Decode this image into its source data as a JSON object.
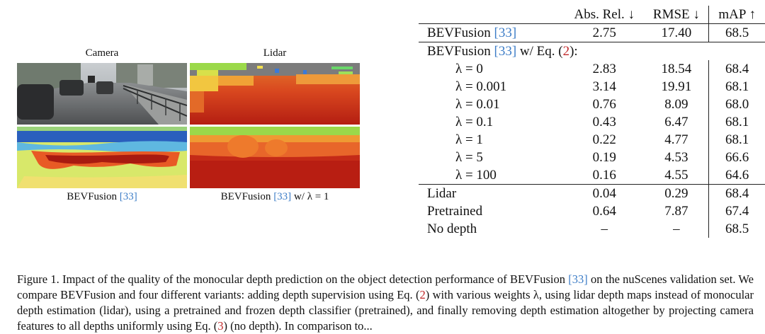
{
  "figure": {
    "panels": {
      "camera_label": "Camera",
      "lidar_label": "Lidar",
      "bevfusion_label": "BEVFusion",
      "bevfusion_cite": "[33]",
      "bevfusion_lambda_label_pre": "BEVFusion",
      "bevfusion_lambda_cite": "[33]",
      "bevfusion_lambda_label_post": " w/ λ = 1"
    }
  },
  "table": {
    "headers": [
      "",
      "Abs. Rel. ↓",
      "RMSE ↓",
      "mAP ↑"
    ],
    "baseline": {
      "name": "BEVFusion",
      "cite": "[33]",
      "abs_rel": "2.75",
      "rmse": "17.40",
      "map": "68.5"
    },
    "group_header": {
      "pre": "BEVFusion",
      "cite": "[33]",
      "mid": " w/ Eq. (",
      "eq": "2",
      "post": "):"
    },
    "lambda_rows": [
      {
        "label": "λ = 0",
        "abs_rel": "2.83",
        "rmse": "18.54",
        "map": "68.4"
      },
      {
        "label": "λ = 0.001",
        "abs_rel": "3.14",
        "rmse": "19.91",
        "map": "68.1"
      },
      {
        "label": "λ = 0.01",
        "abs_rel": "0.76",
        "rmse": "8.09",
        "map": "68.0"
      },
      {
        "label": "λ = 0.1",
        "abs_rel": "0.43",
        "rmse": "6.47",
        "map": "68.1"
      },
      {
        "label": "λ = 1",
        "abs_rel": "0.22",
        "rmse": "4.77",
        "map": "68.1"
      },
      {
        "label": "λ = 5",
        "abs_rel": "0.19",
        "rmse": "4.53",
        "map": "66.6"
      },
      {
        "label": "λ = 100",
        "abs_rel": "0.16",
        "rmse": "4.55",
        "map": "64.6"
      }
    ],
    "other_rows": [
      {
        "label": "Lidar",
        "abs_rel": "0.04",
        "rmse": "0.29",
        "map": "68.4",
        "bold": false
      },
      {
        "label": "Pretrained",
        "abs_rel": "0.64",
        "rmse": "7.87",
        "map": "67.4",
        "bold": false
      },
      {
        "label": "No depth",
        "abs_rel": "–",
        "rmse": "–",
        "map": "68.5",
        "bold": true
      }
    ]
  },
  "caption": {
    "s1": "Figure 1.  Impact of the quality of the monocular depth prediction on the object detection performance of BEVFusion ",
    "c1": "[33]",
    "s2": " on the nuScenes validation set. We compare BEVFusion and four different variants: adding depth supervision using Eq. (",
    "e1": "2",
    "s3": ") with various weights λ, using lidar depth maps instead of monocular depth estimation (lidar), using a pretrained and frozen depth classifier (pretrained), and finally removing depth estimation altogether by projecting camera features to all depths uniformly using Eq. (",
    "e2": "3",
    "s4": ") (no depth). In comparison to..."
  }
}
